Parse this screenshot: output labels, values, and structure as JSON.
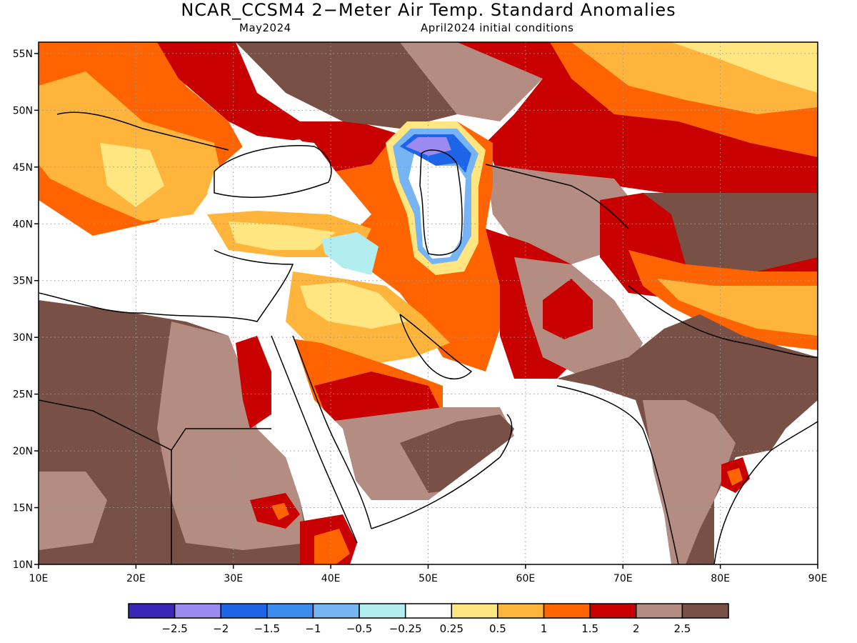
{
  "header": {
    "title": "NCAR_CCSM4 2−Meter Air Temp. Standard Anomalies",
    "valid_month": "May2024",
    "init_conditions": "April2024 initial conditions"
  },
  "map": {
    "lon_range": [
      10,
      90
    ],
    "lat_range": [
      10,
      56
    ],
    "lat_ticks": [
      {
        "value": 55,
        "label": "55N"
      },
      {
        "value": 50,
        "label": "50N"
      },
      {
        "value": 45,
        "label": "45N"
      },
      {
        "value": 40,
        "label": "40N"
      },
      {
        "value": 35,
        "label": "35N"
      },
      {
        "value": 30,
        "label": "30N"
      },
      {
        "value": 25,
        "label": "25N"
      },
      {
        "value": 20,
        "label": "20N"
      },
      {
        "value": 15,
        "label": "15N"
      },
      {
        "value": 10,
        "label": "10N"
      }
    ],
    "lon_ticks": [
      {
        "value": 10,
        "label": "10E"
      },
      {
        "value": 20,
        "label": "20E"
      },
      {
        "value": 30,
        "label": "30E"
      },
      {
        "value": 40,
        "label": "40E"
      },
      {
        "value": 50,
        "label": "50E"
      },
      {
        "value": 60,
        "label": "60E"
      },
      {
        "value": 70,
        "label": "70E"
      },
      {
        "value": 80,
        "label": "80E"
      },
      {
        "value": 90,
        "label": "90E"
      }
    ],
    "colors": {
      "land_boundary": "#000000",
      "grid": "#9a9a9a"
    }
  },
  "colorbar": {
    "colors": [
      "#3b25b8",
      "#9b8af2",
      "#1e64e6",
      "#3c8cf0",
      "#76b4f4",
      "#b2eef0",
      "#ffffff",
      "#ffe680",
      "#ffb43c",
      "#ff6400",
      "#c80000",
      "#b48c82",
      "#785046"
    ],
    "labels": [
      "−2.5",
      "−2",
      "−1.5",
      "−1",
      "−0.5",
      "−0.25",
      "0.25",
      "0.5",
      "1",
      "1.5",
      "2",
      "2.5"
    ]
  }
}
